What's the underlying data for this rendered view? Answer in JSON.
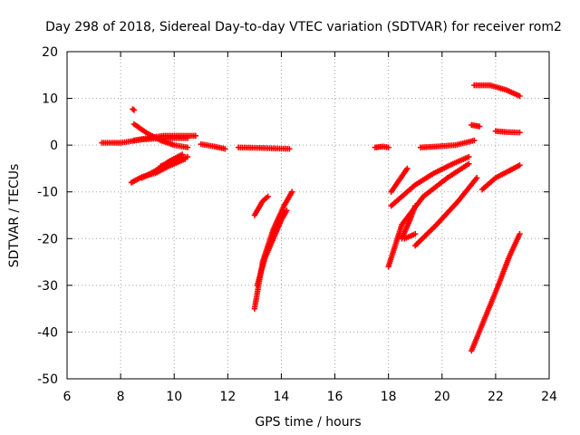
{
  "chart_data": {
    "type": "scatter",
    "title": "Day 298 of 2018, Sidereal Day-to-day VTEC variation (SDTVAR) for receiver rom2",
    "xlabel": "GPS time / hours",
    "ylabel": "SDTVAR / TECUs",
    "xlim": [
      6,
      24
    ],
    "ylim": [
      -50,
      20
    ],
    "xticks": [
      "6",
      "8",
      "10",
      "12",
      "14",
      "16",
      "18",
      "20",
      "22",
      "24"
    ],
    "yticks": [
      "20",
      "10",
      "0",
      "-10",
      "-20",
      "-30",
      "-40",
      "-50"
    ],
    "grid": true,
    "legend": "none",
    "marker": "plus",
    "color": "#ff0000",
    "tracks": [
      {
        "x": [
          7.3,
          8.0,
          8.8,
          9.6,
          10.5
        ],
        "y": [
          0.5,
          0.5,
          1.2,
          1.5,
          1.5
        ]
      },
      {
        "x": [
          8.5,
          9.0,
          9.6,
          10.2,
          10.8
        ],
        "y": [
          1.0,
          1.5,
          2.0,
          2.0,
          2.0
        ]
      },
      {
        "x": [
          8.5,
          8.45
        ],
        "y": [
          7.5,
          7.7
        ]
      },
      {
        "x": [
          8.5,
          9.0,
          9.5,
          10.0,
          10.5
        ],
        "y": [
          4.5,
          2.5,
          1.0,
          0.0,
          -0.5
        ]
      },
      {
        "x": [
          8.4,
          8.8,
          9.3,
          9.8,
          10.4
        ],
        "y": [
          -8.0,
          -6.8,
          -6.0,
          -4.5,
          -3.0
        ]
      },
      {
        "x": [
          8.8,
          9.3,
          9.8,
          10.3
        ],
        "y": [
          -7.0,
          -5.5,
          -3.5,
          -2.0
        ]
      },
      {
        "x": [
          9.5,
          10.0,
          10.5
        ],
        "y": [
          -4.5,
          -3.2,
          -2.5
        ]
      },
      {
        "x": [
          11.0,
          11.5,
          11.9
        ],
        "y": [
          0.2,
          -0.3,
          -0.8
        ]
      },
      {
        "x": [
          12.4,
          13.2,
          14.3
        ],
        "y": [
          -0.5,
          -0.6,
          -0.8
        ]
      },
      {
        "x": [
          13.0,
          13.3,
          13.5
        ],
        "y": [
          -15.0,
          -12.0,
          -11.0
        ]
      },
      {
        "x": [
          13.0,
          13.3,
          13.7,
          14.1,
          14.4
        ],
        "y": [
          -35.0,
          -25.0,
          -18.0,
          -13.0,
          -10.0
        ]
      },
      {
        "x": [
          13.1,
          13.4,
          13.7,
          14.0,
          14.2
        ],
        "y": [
          -30.0,
          -24.0,
          -20.0,
          -16.0,
          -14.0
        ]
      },
      {
        "x": [
          17.5,
          17.8,
          18.0
        ],
        "y": [
          -0.5,
          -0.3,
          -0.5
        ]
      },
      {
        "x": [
          19.2,
          19.8,
          20.5,
          21.2
        ],
        "y": [
          -0.5,
          -0.3,
          0.0,
          1.0
        ]
      },
      {
        "x": [
          18.1,
          18.4,
          18.7
        ],
        "y": [
          -10.0,
          -7.5,
          -5.0
        ]
      },
      {
        "x": [
          18.1,
          18.5,
          19.0,
          19.7,
          20.4,
          21.0
        ],
        "y": [
          -13.0,
          -11.0,
          -8.5,
          -6.0,
          -4.0,
          -2.5
        ]
      },
      {
        "x": [
          18.0,
          18.5,
          19.3,
          20.2,
          21.0
        ],
        "y": [
          -26.0,
          -17.0,
          -11.0,
          -7.0,
          -4.0
        ]
      },
      {
        "x": [
          18.5,
          18.8,
          19.0
        ],
        "y": [
          -20.0,
          -16.0,
          -13.0
        ]
      },
      {
        "x": [
          19.0,
          19.8,
          20.6,
          21.3
        ],
        "y": [
          -21.5,
          -17.0,
          -12.0,
          -7.0
        ]
      },
      {
        "x": [
          18.6,
          19.0
        ],
        "y": [
          -20.0,
          -19.0
        ]
      },
      {
        "x": [
          21.1,
          21.4
        ],
        "y": [
          4.3,
          4.0
        ]
      },
      {
        "x": [
          21.2,
          21.8,
          22.4,
          22.9
        ],
        "y": [
          12.8,
          12.8,
          11.8,
          10.5
        ]
      },
      {
        "x": [
          22.0,
          22.4,
          22.9
        ],
        "y": [
          3.0,
          2.8,
          2.7
        ]
      },
      {
        "x": [
          21.5,
          22.0,
          22.5,
          22.9
        ],
        "y": [
          -9.5,
          -7.0,
          -5.5,
          -4.3
        ]
      },
      {
        "x": [
          21.1,
          21.6,
          22.1,
          22.5,
          22.9
        ],
        "y": [
          -44.0,
          -37.0,
          -30.0,
          -24.0,
          -19.0
        ]
      }
    ]
  }
}
